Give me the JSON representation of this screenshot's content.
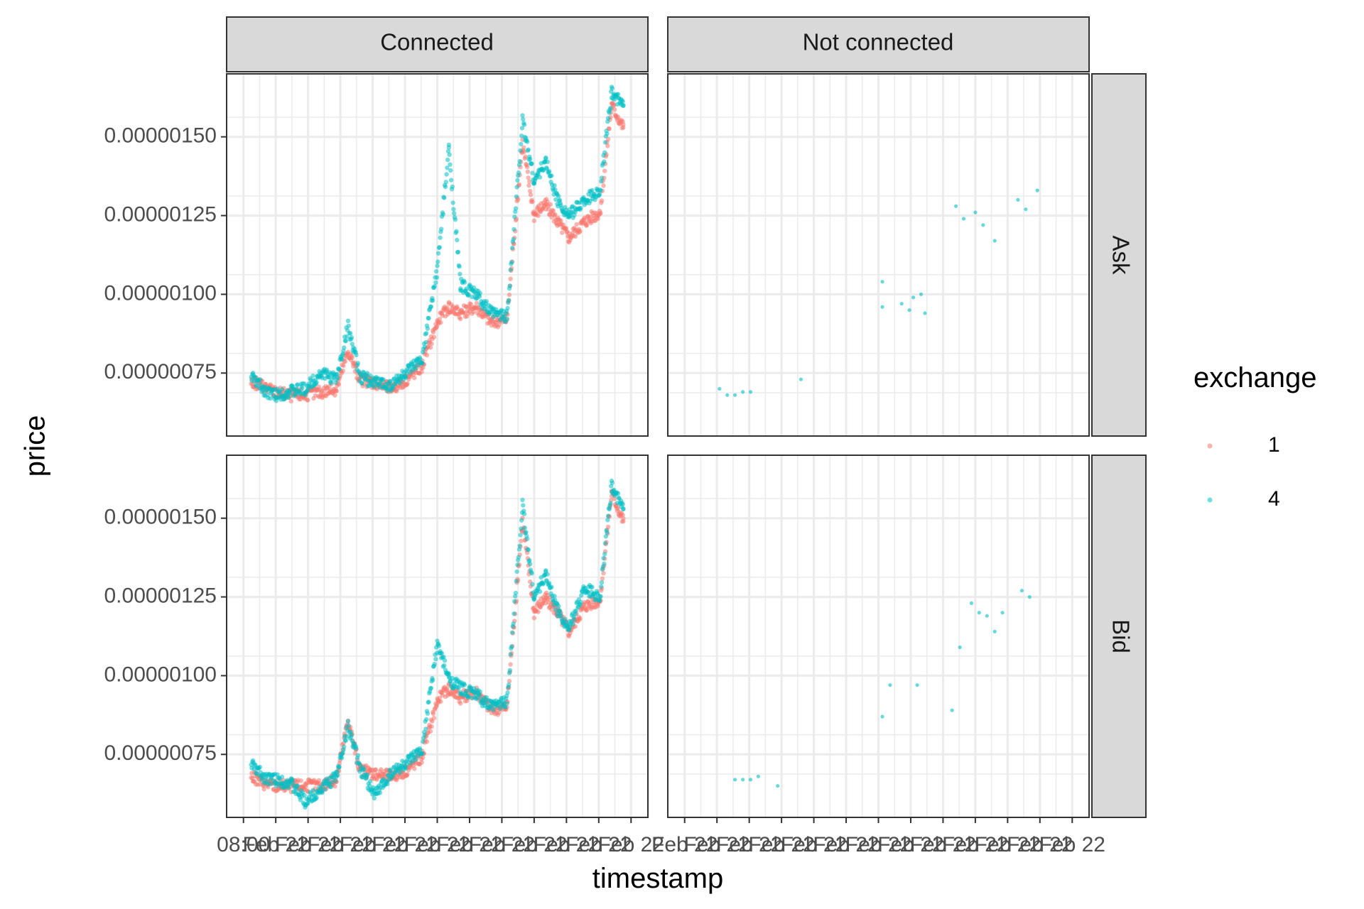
{
  "chart_data": {
    "type": "scatter",
    "title": "",
    "xlabel": "timestamp",
    "ylabel": "price",
    "facet_columns": [
      "Connected",
      "Not connected"
    ],
    "facet_rows": [
      "Ask",
      "Bid"
    ],
    "y_ticks": [
      "0.00000075",
      "0.00000100",
      "0.00000125",
      "0.00000150"
    ],
    "ylim": [
      5.5e-07,
      1.7e-06
    ],
    "x_tick_labels": [
      "08:00",
      "Feb 22"
    ],
    "legend": {
      "title": "exchange",
      "position": "right",
      "entries": [
        "1",
        "4"
      ]
    },
    "colors": {
      "exchange_1": "#F8766D",
      "exchange_4": "#00BFC4",
      "strip_fill": "#D9D9D9",
      "grid": "#EBEBEB"
    },
    "grid": true,
    "series": [
      {
        "name": "1",
        "facets": {
          "Connected|Ask": [
            [
              0.02,
              7.2e-07
            ],
            [
              0.05,
              7.1e-07
            ],
            [
              0.08,
              6.9e-07
            ],
            [
              0.12,
              6.8e-07
            ],
            [
              0.16,
              6.8e-07
            ],
            [
              0.2,
              6.9e-07
            ],
            [
              0.24,
              7e-07
            ],
            [
              0.27,
              8.2e-07
            ],
            [
              0.3,
              7.3e-07
            ],
            [
              0.34,
              7.2e-07
            ],
            [
              0.38,
              7e-07
            ],
            [
              0.42,
              7.3e-07
            ],
            [
              0.46,
              7.7e-07
            ],
            [
              0.5,
              9.1e-07
            ],
            [
              0.53,
              9.6e-07
            ],
            [
              0.56,
              9.4e-07
            ],
            [
              0.6,
              9.6e-07
            ],
            [
              0.64,
              9.1e-07
            ],
            [
              0.68,
              9.2e-07
            ],
            [
              0.72,
              1.48e-06
            ],
            [
              0.75,
              1.25e-06
            ],
            [
              0.78,
              1.29e-06
            ],
            [
              0.81,
              1.23e-06
            ],
            [
              0.84,
              1.18e-06
            ],
            [
              0.88,
              1.23e-06
            ],
            [
              0.92,
              1.26e-06
            ],
            [
              0.95,
              1.6e-06
            ],
            [
              0.98,
              1.53e-06
            ]
          ],
          "Connected|Bid": [
            [
              0.02,
              6.8e-07
            ],
            [
              0.05,
              6.6e-07
            ],
            [
              0.08,
              6.5e-07
            ],
            [
              0.12,
              6.5e-07
            ],
            [
              0.16,
              6.5e-07
            ],
            [
              0.2,
              6.5e-07
            ],
            [
              0.24,
              6.7e-07
            ],
            [
              0.27,
              8.6e-07
            ],
            [
              0.3,
              7e-07
            ],
            [
              0.34,
              6.9e-07
            ],
            [
              0.38,
              6.8e-07
            ],
            [
              0.42,
              7e-07
            ],
            [
              0.46,
              7.4e-07
            ],
            [
              0.5,
              9.2e-07
            ],
            [
              0.53,
              9.6e-07
            ],
            [
              0.56,
              9.3e-07
            ],
            [
              0.6,
              9.5e-07
            ],
            [
              0.64,
              8.9e-07
            ],
            [
              0.68,
              9e-07
            ],
            [
              0.72,
              1.49e-06
            ],
            [
              0.75,
              1.2e-06
            ],
            [
              0.78,
              1.25e-06
            ],
            [
              0.81,
              1.2e-06
            ],
            [
              0.84,
              1.14e-06
            ],
            [
              0.88,
              1.22e-06
            ],
            [
              0.92,
              1.24e-06
            ],
            [
              0.95,
              1.58e-06
            ],
            [
              0.98,
              1.49e-06
            ]
          ]
        }
      },
      {
        "name": "4",
        "facets": {
          "Connected|Ask": [
            [
              0.02,
              7.4e-07
            ],
            [
              0.05,
              7e-07
            ],
            [
              0.08,
              6.8e-07
            ],
            [
              0.12,
              6.9e-07
            ],
            [
              0.16,
              7e-07
            ],
            [
              0.2,
              7.5e-07
            ],
            [
              0.24,
              7.3e-07
            ],
            [
              0.27,
              9e-07
            ],
            [
              0.3,
              7.4e-07
            ],
            [
              0.34,
              7.2e-07
            ],
            [
              0.38,
              7.1e-07
            ],
            [
              0.42,
              7.5e-07
            ],
            [
              0.46,
              7.9e-07
            ],
            [
              0.5,
              1.08e-06
            ],
            [
              0.53,
              1.46e-06
            ],
            [
              0.56,
              1.03e-06
            ],
            [
              0.6,
              1e-06
            ],
            [
              0.64,
              9.4e-07
            ],
            [
              0.68,
              9.3e-07
            ],
            [
              0.72,
              1.55e-06
            ],
            [
              0.75,
              1.36e-06
            ],
            [
              0.78,
              1.42e-06
            ],
            [
              0.81,
              1.3e-06
            ],
            [
              0.84,
              1.25e-06
            ],
            [
              0.88,
              1.3e-06
            ],
            [
              0.92,
              1.33e-06
            ],
            [
              0.95,
              1.64e-06
            ],
            [
              0.98,
              1.6e-06
            ]
          ],
          "Connected|Bid": [
            [
              0.02,
              7.2e-07
            ],
            [
              0.05,
              6.8e-07
            ],
            [
              0.08,
              6.7e-07
            ],
            [
              0.12,
              6.6e-07
            ],
            [
              0.16,
              6e-07
            ],
            [
              0.2,
              6.4e-07
            ],
            [
              0.24,
              6.8e-07
            ],
            [
              0.27,
              8.4e-07
            ],
            [
              0.3,
              7.1e-07
            ],
            [
              0.34,
              6.2e-07
            ],
            [
              0.38,
              6.9e-07
            ],
            [
              0.42,
              7.2e-07
            ],
            [
              0.46,
              7.6e-07
            ],
            [
              0.5,
              1.1e-06
            ],
            [
              0.53,
              9.9e-07
            ],
            [
              0.56,
              9.6e-07
            ],
            [
              0.6,
              9.4e-07
            ],
            [
              0.64,
              9e-07
            ],
            [
              0.68,
              9.2e-07
            ],
            [
              0.72,
              1.54e-06
            ],
            [
              0.75,
              1.25e-06
            ],
            [
              0.78,
              1.32e-06
            ],
            [
              0.81,
              1.21e-06
            ],
            [
              0.84,
              1.15e-06
            ],
            [
              0.88,
              1.28e-06
            ],
            [
              0.92,
              1.25e-06
            ],
            [
              0.95,
              1.6e-06
            ],
            [
              0.98,
              1.53e-06
            ]
          ],
          "Not connected|Ask": [
            [
              0.09,
              7e-07
            ],
            [
              0.11,
              6.8e-07
            ],
            [
              0.13,
              6.8e-07
            ],
            [
              0.15,
              6.9e-07
            ],
            [
              0.17,
              6.9e-07
            ],
            [
              0.3,
              7.3e-07
            ],
            [
              0.51,
              1.04e-06
            ],
            [
              0.51,
              9.6e-07
            ],
            [
              0.56,
              9.7e-07
            ],
            [
              0.58,
              9.5e-07
            ],
            [
              0.59,
              9.9e-07
            ],
            [
              0.61,
              1e-06
            ],
            [
              0.62,
              9.4e-07
            ],
            [
              0.7,
              1.28e-06
            ],
            [
              0.72,
              1.24e-06
            ],
            [
              0.75,
              1.26e-06
            ],
            [
              0.77,
              1.22e-06
            ],
            [
              0.8,
              1.17e-06
            ],
            [
              0.86,
              1.3e-06
            ],
            [
              0.88,
              1.27e-06
            ],
            [
              0.91,
              1.33e-06
            ]
          ],
          "Not connected|Bid": [
            [
              0.13,
              6.7e-07
            ],
            [
              0.15,
              6.7e-07
            ],
            [
              0.17,
              6.7e-07
            ],
            [
              0.19,
              6.8e-07
            ],
            [
              0.24,
              6.5e-07
            ],
            [
              0.51,
              8.7e-07
            ],
            [
              0.53,
              9.7e-07
            ],
            [
              0.6,
              9.7e-07
            ],
            [
              0.69,
              8.9e-07
            ],
            [
              0.71,
              1.09e-06
            ],
            [
              0.74,
              1.23e-06
            ],
            [
              0.76,
              1.2e-06
            ],
            [
              0.78,
              1.19e-06
            ],
            [
              0.8,
              1.14e-06
            ],
            [
              0.82,
              1.2e-06
            ],
            [
              0.87,
              1.27e-06
            ],
            [
              0.89,
              1.25e-06
            ]
          ]
        }
      }
    ]
  }
}
